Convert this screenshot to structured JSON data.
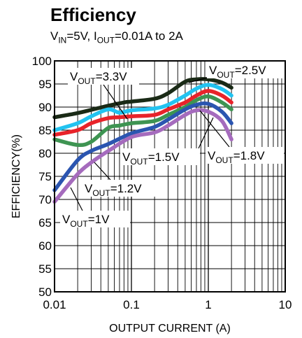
{
  "chart_data": {
    "type": "line",
    "title": "Efficiency",
    "subtitle": {
      "v": "V",
      "v_sub": "IN",
      "v_rest": "=5V, ",
      "i": "I",
      "i_sub": "OUT",
      "i_rest": "=0.01A to 2A"
    },
    "xlabel": "OUTPUT CURRENT (A)",
    "ylabel": "EFFICIENCY(%)",
    "x_scale": "log",
    "xlim": [
      0.01,
      10
    ],
    "ylim": [
      50,
      100
    ],
    "x_tick_labels": [
      "0.01",
      "0.1",
      "1",
      "10"
    ],
    "y_tick_labels": [
      "50",
      "55",
      "60",
      "65",
      "70",
      "75",
      "80",
      "85",
      "90",
      "95",
      "100"
    ],
    "grid": true,
    "series": [
      {
        "name": "VOUT=2.5V",
        "color": "#1a2a16",
        "x": [
          0.01,
          0.02,
          0.05,
          0.08,
          0.1,
          0.2,
          0.3,
          0.5,
          0.7,
          1.0,
          1.5,
          2.0
        ],
        "y": [
          87.8,
          88.7,
          90.3,
          91.0,
          91.2,
          91.8,
          93.0,
          95.5,
          96.0,
          96.0,
          95.3,
          94.2
        ]
      },
      {
        "name": "VOUT=3.3V",
        "color": "#22c3f0",
        "x": [
          0.01,
          0.02,
          0.03,
          0.05,
          0.07,
          0.1,
          0.2,
          0.3,
          0.5,
          0.7,
          1.0,
          1.5,
          2.0
        ],
        "y": [
          85.0,
          86.5,
          88.0,
          89.5,
          88.8,
          89.3,
          89.7,
          90.5,
          92.5,
          94.0,
          94.8,
          93.9,
          92.5
        ]
      },
      {
        "name": "VOUT=1.8V",
        "color": "#e8232a",
        "x": [
          0.01,
          0.02,
          0.03,
          0.05,
          0.07,
          0.1,
          0.2,
          0.3,
          0.5,
          0.7,
          1.0,
          1.5,
          2.0
        ],
        "y": [
          84.0,
          85.0,
          86.5,
          87.6,
          87.8,
          88.0,
          88.3,
          89.5,
          91.0,
          92.5,
          93.5,
          92.5,
          91.0
        ]
      },
      {
        "name": "VOUT=1.5V",
        "color": "#3e9452",
        "x": [
          0.01,
          0.02,
          0.03,
          0.05,
          0.07,
          0.1,
          0.2,
          0.3,
          0.5,
          0.7,
          1.0,
          1.5,
          2.0
        ],
        "y": [
          83.0,
          81.8,
          82.5,
          85.5,
          86.0,
          86.5,
          87.0,
          88.3,
          90.0,
          91.5,
          92.3,
          91.0,
          89.5
        ]
      },
      {
        "name": "VOUT=1.2V",
        "color": "#2b55b0",
        "x": [
          0.01,
          0.02,
          0.03,
          0.05,
          0.1,
          0.2,
          0.3,
          0.5,
          0.7,
          1.0,
          1.5,
          2.0
        ],
        "y": [
          72.0,
          78.5,
          80.5,
          82.0,
          84.3,
          85.7,
          87.3,
          89.5,
          90.5,
          90.7,
          89.0,
          86.5
        ]
      },
      {
        "name": "VOUT=1V",
        "color": "#a56bbd",
        "x": [
          0.01,
          0.02,
          0.03,
          0.05,
          0.1,
          0.2,
          0.3,
          0.5,
          0.7,
          1.0,
          1.5,
          2.0
        ],
        "y": [
          69.5,
          75.5,
          78.0,
          80.5,
          83.5,
          84.5,
          86.0,
          88.3,
          89.3,
          89.0,
          87.0,
          83.0
        ]
      }
    ],
    "annotations": [
      {
        "series": "VOUT=3.3V",
        "v": "V",
        "sub": "OUT",
        "rest": "=3.3V"
      },
      {
        "series": "VOUT=2.5V",
        "v": "V",
        "sub": "OUT",
        "rest": "=2.5V"
      },
      {
        "series": "VOUT=1.5V",
        "v": "V",
        "sub": "OUT",
        "rest": "=1.5V"
      },
      {
        "series": "VOUT=1.8V",
        "v": "V",
        "sub": "OUT",
        "rest": "=1.8V"
      },
      {
        "series": "VOUT=1.2V",
        "v": "V",
        "sub": "OUT",
        "rest": "=1.2V"
      },
      {
        "series": "VOUT=1V",
        "v": "V",
        "sub": "OUT",
        "rest": "=1V"
      }
    ]
  }
}
